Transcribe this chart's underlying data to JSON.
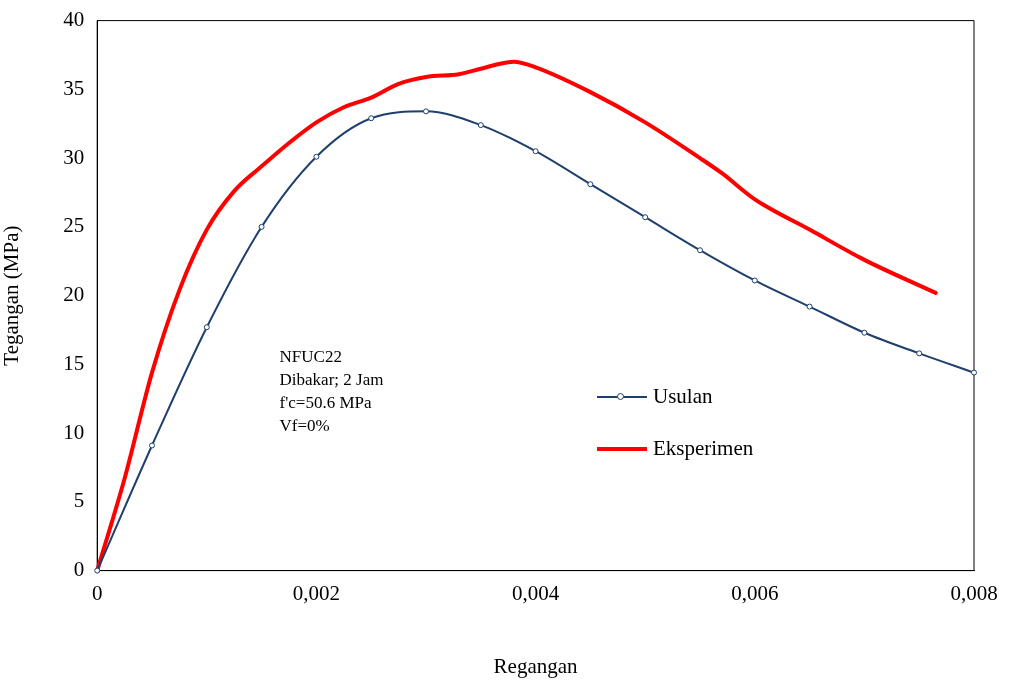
{
  "chart_data": {
    "type": "line",
    "xlabel": "Regangan",
    "ylabel": "Tegangan (MPa)",
    "xlim": [
      0,
      0.008
    ],
    "xticks": [
      {
        "value": 0,
        "label": "0"
      },
      {
        "value": 0.002,
        "label": "0,002"
      },
      {
        "value": 0.004,
        "label": "0,004"
      },
      {
        "value": 0.006,
        "label": "0,006"
      },
      {
        "value": 0.008,
        "label": "0,008"
      }
    ],
    "ylim": [
      0,
      40
    ],
    "yticks": [
      0,
      5,
      10,
      15,
      20,
      25,
      30,
      35,
      40
    ],
    "grid": false,
    "legend": "right",
    "annotations": [
      "NFUC22",
      "Dibakar; 2 Jam",
      "f'c=50.6 MPa",
      "Vf=0%"
    ],
    "series": [
      {
        "name": "Usulan",
        "color": "#1f3f6e",
        "marker": "circle",
        "x": [
          0,
          0.0005,
          0.001,
          0.0015,
          0.002,
          0.0025,
          0.003,
          0.0035,
          0.004,
          0.0045,
          0.005,
          0.0055,
          0.006,
          0.0065,
          0.007,
          0.0075,
          0.008
        ],
        "values": [
          0,
          9.1,
          17.7,
          25.0,
          30.1,
          32.9,
          33.4,
          32.4,
          30.5,
          28.1,
          25.7,
          23.3,
          21.1,
          19.2,
          17.3,
          15.8,
          14.4
        ]
      },
      {
        "name": "Eksperimen",
        "color": "#ff0000",
        "marker": "none",
        "x": [
          0,
          0.00025,
          0.0005,
          0.00075,
          0.001,
          0.00125,
          0.0015,
          0.00175,
          0.002,
          0.00225,
          0.0025,
          0.00275,
          0.003,
          0.0033,
          0.0035,
          0.0037,
          0.0038,
          0.004,
          0.0045,
          0.005,
          0.0055,
          0.0057,
          0.006,
          0.0065,
          0.007,
          0.00765
        ],
        "values": [
          0,
          6.7,
          14.4,
          20.4,
          24.8,
          27.6,
          29.4,
          31.1,
          32.6,
          33.7,
          34.4,
          35.4,
          35.9,
          36.1,
          36.5,
          36.9,
          37.0,
          36.6,
          34.8,
          32.6,
          30.0,
          28.9,
          27.0,
          24.8,
          22.6,
          20.2
        ]
      }
    ]
  }
}
